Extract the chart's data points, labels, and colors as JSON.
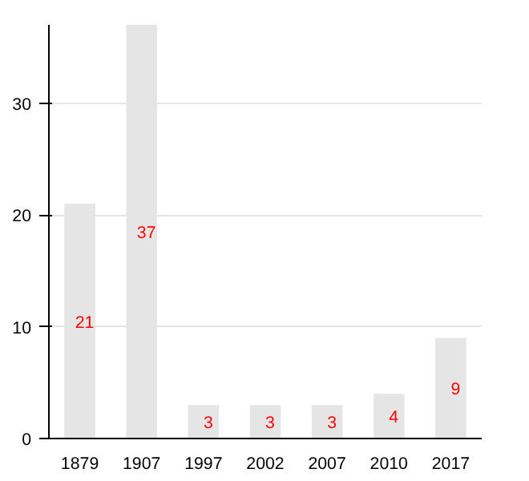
{
  "chart_data": {
    "type": "bar",
    "categories": [
      "1879",
      "1907",
      "1997",
      "2002",
      "2007",
      "2010",
      "2017"
    ],
    "values": [
      21,
      37,
      3,
      3,
      3,
      4,
      9
    ],
    "color": "#e5e5e5",
    "ylim": [
      0,
      37
    ],
    "yticks": [
      0,
      10,
      20,
      30
    ],
    "grid": "y",
    "data_labels": true
  }
}
